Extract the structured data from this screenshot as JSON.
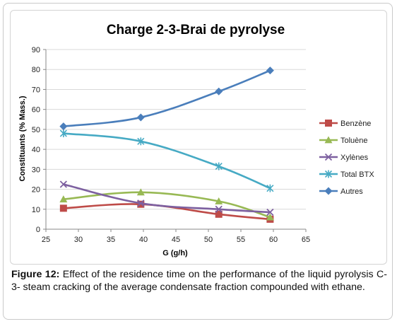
{
  "chart_data": {
    "type": "line",
    "title": "Charge 2-3-Brai de pyrolyse",
    "xlabel": "G (g/h)",
    "ylabel": "Constituants (% Mass.)",
    "xlim": [
      25,
      65
    ],
    "ylim": [
      0,
      90
    ],
    "xticks": [
      "25",
      "30",
      "35",
      "40",
      "45",
      "50",
      "55",
      "60",
      "65"
    ],
    "yticks": [
      "0",
      "10",
      "20",
      "30",
      "40",
      "50",
      "60",
      "70",
      "80",
      "90"
    ],
    "grid": "horizontal",
    "legend_position": "right",
    "x": [
      27.7,
      39.6,
      51.6,
      59.5
    ],
    "series": [
      {
        "name": "Benzène",
        "values": [
          10.5,
          12.5,
          7.5,
          5.0
        ],
        "color": "#be4b48",
        "marker": "square"
      },
      {
        "name": "Toluène",
        "values": [
          15.0,
          18.5,
          14.0,
          6.0
        ],
        "color": "#98b954",
        "marker": "triangle"
      },
      {
        "name": "Xylènes",
        "values": [
          22.5,
          13.0,
          10.0,
          8.5
        ],
        "color": "#7d60a0",
        "marker": "x"
      },
      {
        "name": "Total BTX",
        "values": [
          48.0,
          44.0,
          31.5,
          20.5
        ],
        "color": "#46aac4",
        "marker": "star"
      },
      {
        "name": "Autres",
        "values": [
          51.5,
          56.0,
          69.0,
          79.5
        ],
        "color": "#4a7ebb",
        "marker": "diamond"
      }
    ]
  },
  "caption": {
    "label": "Figure 12:",
    "text": " Effect of the residence time on the performance of the liquid pyrolysis C-3- steam cracking of the average condensate fraction compounded with ethane."
  }
}
